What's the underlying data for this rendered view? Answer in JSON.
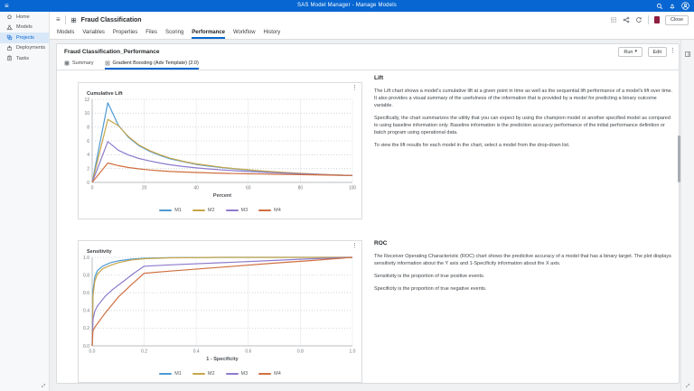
{
  "colors": {
    "accent": "#0766d1",
    "app_bar": "#0766d1",
    "brand_badge": "#8e1f3f",
    "series": [
      "#4e9ad4",
      "#c7a64a",
      "#8d7bcd",
      "#d06f3f"
    ]
  },
  "icons": {
    "hamburger": "≡",
    "list_view": "≡",
    "kebab": "⋮",
    "caret_down": "▾"
  },
  "app_bar": {
    "title": "SAS Model Manager - Manage Models"
  },
  "sidebar": {
    "items": [
      {
        "label": "Home"
      },
      {
        "label": "Models"
      },
      {
        "label": "Projects"
      },
      {
        "label": "Deployments"
      },
      {
        "label": "Tasks"
      }
    ]
  },
  "header": {
    "title": "Fraud Classification",
    "close_label": "Close"
  },
  "tabs": [
    {
      "label": "Models"
    },
    {
      "label": "Variables"
    },
    {
      "label": "Properties"
    },
    {
      "label": "Files"
    },
    {
      "label": "Scoring"
    },
    {
      "label": "Performance"
    },
    {
      "label": "Workflow"
    },
    {
      "label": "History"
    }
  ],
  "performance": {
    "title": "Fraud Classification_Performance",
    "run_label": "Run",
    "edit_label": "Edit",
    "subtabs": [
      {
        "label": "Summary"
      },
      {
        "label": "Gradient Boosting (Adv Template) (2.0)"
      }
    ],
    "lift": {
      "heading": "Lift",
      "paragraphs": [
        "The Lift chart shows a model's cumulative lift at a given point in time as well as the sequential lift performance of a model's lift over time. It also provides a visual summary of the usefulness of the information that is provided by a model for predicting a binary outcome variable.",
        "Specifically, the chart summarizes the utility that you can expect by using the champion model or another specified model as compared to using baseline information only. Baseline information is the prediction accuracy performance of the initial performance definition or batch program using operational data.",
        "To view the lift results for each model in the chart, select a model from the drop-down list."
      ]
    },
    "roc": {
      "heading": "ROC",
      "paragraphs": [
        "The Receiver Operating Characteristic (ROC) chart shows the predictive accuracy of a model that has a binary target. The plot displays sensitivity information about the Y axis and 1-Specificity information about the X axis.",
        "Sensitivity is the proportion of true positive events.",
        "Specificity is the proportion of true negative events."
      ]
    }
  },
  "chart_data": [
    {
      "type": "line",
      "title": "Cumulative Lift",
      "xlabel": "Percent",
      "ylabel": "Cumulative Lift",
      "xlim": [
        0,
        100
      ],
      "ylim": [
        0,
        12
      ],
      "xticks": [
        0,
        20,
        40,
        60,
        80,
        100
      ],
      "xtick_labels": [
        "0",
        "20",
        "40",
        "60",
        "80",
        "100"
      ],
      "yticks": [
        0,
        2,
        4,
        6,
        8,
        10,
        12
      ],
      "ytick_labels": [
        "0",
        "2",
        "4",
        "6",
        "8",
        "10",
        "12"
      ],
      "grid": "horizontal-dotted",
      "legend_position": "bottom",
      "series": [
        {
          "name": "M1",
          "color": "#4e9ad4",
          "points": [
            [
              0,
              0
            ],
            [
              6,
              11.5
            ],
            [
              10,
              8.3
            ],
            [
              14,
              6.5
            ],
            [
              18,
              5.3
            ],
            [
              22,
              4.5
            ],
            [
              26,
              3.9
            ],
            [
              30,
              3.4
            ],
            [
              35,
              3.0
            ],
            [
              40,
              2.6
            ],
            [
              45,
              2.35
            ],
            [
              50,
              2.12
            ],
            [
              55,
              1.93
            ],
            [
              60,
              1.78
            ],
            [
              65,
              1.63
            ],
            [
              70,
              1.5
            ],
            [
              75,
              1.39
            ],
            [
              80,
              1.29
            ],
            [
              85,
              1.2
            ],
            [
              90,
              1.12
            ],
            [
              95,
              1.05
            ],
            [
              100,
              1.0
            ]
          ]
        },
        {
          "name": "M2",
          "color": "#c7a64a",
          "points": [
            [
              0,
              0
            ],
            [
              6,
              9.1
            ],
            [
              10,
              8.2
            ],
            [
              14,
              6.6
            ],
            [
              18,
              5.4
            ],
            [
              22,
              4.6
            ],
            [
              26,
              4.0
            ],
            [
              30,
              3.5
            ],
            [
              35,
              3.05
            ],
            [
              40,
              2.68
            ],
            [
              45,
              2.42
            ],
            [
              50,
              2.18
            ],
            [
              55,
              1.98
            ],
            [
              60,
              1.82
            ],
            [
              65,
              1.67
            ],
            [
              70,
              1.54
            ],
            [
              75,
              1.42
            ],
            [
              80,
              1.31
            ],
            [
              85,
              1.22
            ],
            [
              90,
              1.13
            ],
            [
              95,
              1.06
            ],
            [
              100,
              1.0
            ]
          ]
        },
        {
          "name": "M3",
          "color": "#8d7bcd",
          "points": [
            [
              0,
              0
            ],
            [
              6,
              5.9
            ],
            [
              10,
              4.65
            ],
            [
              14,
              3.95
            ],
            [
              18,
              3.45
            ],
            [
              22,
              3.1
            ],
            [
              26,
              2.8
            ],
            [
              30,
              2.55
            ],
            [
              35,
              2.3
            ],
            [
              40,
              2.1
            ],
            [
              45,
              1.94
            ],
            [
              50,
              1.8
            ],
            [
              55,
              1.68
            ],
            [
              60,
              1.58
            ],
            [
              65,
              1.48
            ],
            [
              70,
              1.4
            ],
            [
              75,
              1.32
            ],
            [
              80,
              1.24
            ],
            [
              85,
              1.17
            ],
            [
              90,
              1.1
            ],
            [
              95,
              1.04
            ],
            [
              100,
              1.0
            ]
          ]
        },
        {
          "name": "M4",
          "color": "#d06f3f",
          "points": [
            [
              0,
              0
            ],
            [
              6,
              2.8
            ],
            [
              10,
              2.42
            ],
            [
              14,
              2.15
            ],
            [
              18,
              1.95
            ],
            [
              22,
              1.8
            ],
            [
              26,
              1.68
            ],
            [
              30,
              1.58
            ],
            [
              35,
              1.5
            ],
            [
              40,
              1.43
            ],
            [
              45,
              1.37
            ],
            [
              50,
              1.32
            ],
            [
              55,
              1.28
            ],
            [
              60,
              1.24
            ],
            [
              65,
              1.21
            ],
            [
              70,
              1.18
            ],
            [
              75,
              1.15
            ],
            [
              80,
              1.12
            ],
            [
              85,
              1.09
            ],
            [
              90,
              1.06
            ],
            [
              95,
              1.03
            ],
            [
              100,
              1.0
            ]
          ]
        }
      ]
    },
    {
      "type": "line",
      "title": "Sensitivity",
      "xlabel": "1 - Specificity",
      "ylabel": "Sensitivity",
      "xlim": [
        0,
        1
      ],
      "ylim": [
        0,
        1
      ],
      "xticks": [
        0,
        0.2,
        0.4,
        0.6,
        0.8,
        1.0
      ],
      "xtick_labels": [
        "0.0",
        "0.2",
        "0.4",
        "0.6",
        "0.8",
        "1.0"
      ],
      "yticks": [
        0,
        0.2,
        0.4,
        0.6,
        0.8,
        1.0
      ],
      "ytick_labels": [
        "0.0",
        "0.2",
        "0.4",
        "0.6",
        "0.8",
        "1.0"
      ],
      "grid": "horizontal-dotted",
      "legend_position": "bottom",
      "series": [
        {
          "name": "M1",
          "color": "#4e9ad4",
          "points": [
            [
              0,
              0
            ],
            [
              0.003,
              0.62
            ],
            [
              0.01,
              0.78
            ],
            [
              0.02,
              0.85
            ],
            [
              0.04,
              0.9
            ],
            [
              0.07,
              0.94
            ],
            [
              0.1,
              0.96
            ],
            [
              0.15,
              0.98
            ],
            [
              0.2,
              0.99
            ],
            [
              0.3,
              0.996
            ],
            [
              0.5,
              1
            ],
            [
              1,
              1
            ]
          ]
        },
        {
          "name": "M2",
          "color": "#c7a64a",
          "points": [
            [
              0,
              0
            ],
            [
              0.003,
              0.56
            ],
            [
              0.01,
              0.73
            ],
            [
              0.02,
              0.81
            ],
            [
              0.04,
              0.87
            ],
            [
              0.07,
              0.91
            ],
            [
              0.1,
              0.94
            ],
            [
              0.15,
              0.97
            ],
            [
              0.2,
              0.985
            ],
            [
              0.3,
              0.995
            ],
            [
              0.5,
              1
            ],
            [
              1,
              1
            ]
          ]
        },
        {
          "name": "M3",
          "color": "#8d7bcd",
          "points": [
            [
              0,
              0
            ],
            [
              0.003,
              0.3
            ],
            [
              0.01,
              0.39
            ],
            [
              0.02,
              0.45
            ],
            [
              0.05,
              0.56
            ],
            [
              0.08,
              0.64
            ],
            [
              0.12,
              0.73
            ],
            [
              0.16,
              0.82
            ],
            [
              0.2,
              0.9
            ],
            [
              0.3,
              0.915
            ],
            [
              0.5,
              0.94
            ],
            [
              0.7,
              0.965
            ],
            [
              0.85,
              0.985
            ],
            [
              1,
              1
            ]
          ]
        },
        {
          "name": "M4",
          "color": "#d06f3f",
          "points": [
            [
              0,
              0
            ],
            [
              0.003,
              0.17
            ],
            [
              0.01,
              0.21
            ],
            [
              0.05,
              0.37
            ],
            [
              0.1,
              0.55
            ],
            [
              0.15,
              0.69
            ],
            [
              0.2,
              0.82
            ],
            [
              0.3,
              0.845
            ],
            [
              0.5,
              0.89
            ],
            [
              0.7,
              0.935
            ],
            [
              0.85,
              0.965
            ],
            [
              1,
              1
            ]
          ]
        }
      ]
    }
  ]
}
